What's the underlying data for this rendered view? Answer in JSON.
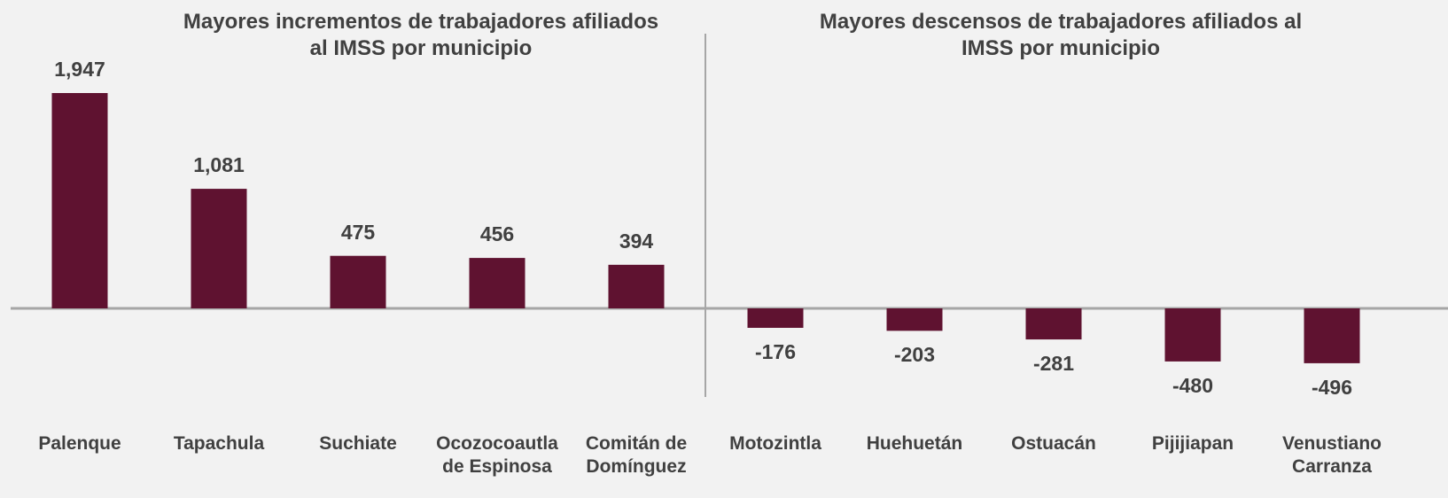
{
  "chart_data": {
    "type": "bar",
    "titles": [
      "Mayores incrementos de trabajadores afiliados al IMSS por municipio",
      "Mayores descensos de trabajadores afiliados al IMSS por municipio"
    ],
    "categories": [
      "Palenque",
      "Tapachula",
      "Suchiate",
      "Ocozocoautla de Espinosa",
      "Comitán de Domínguez",
      "Motozintla",
      "Huehuetán",
      "Ostuacán",
      "Pijijiapan",
      "Venustiano Carranza"
    ],
    "values": [
      1947,
      1081,
      475,
      456,
      394,
      -176,
      -203,
      -281,
      -480,
      -496
    ],
    "value_labels": [
      "1,947",
      "1,081",
      "475",
      "456",
      "394",
      "-176",
      "-203",
      "-281",
      "-480",
      "-496"
    ],
    "color": "#5f1230"
  }
}
